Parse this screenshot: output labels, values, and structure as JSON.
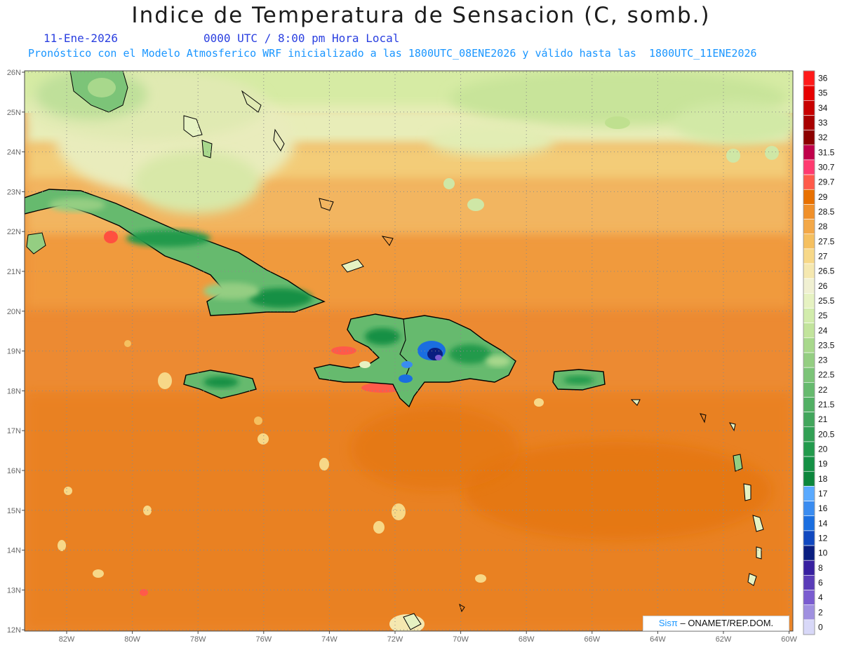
{
  "header": {
    "title": "Indice de Temperatura de Sensacion (C, somb.)",
    "date": "11-Ene-2026",
    "time": "0000 UTC / 8:00 pm Hora Local",
    "forecast_note": "Pronóstico con el Modelo Atmosferico WRF inicializado a las 1800UTC_08ENE2026 y válido hasta las  1800UTC_11ENE2026"
  },
  "credit": {
    "brand": "Sisπ",
    "text": " – ONAMET/REP.DOM."
  },
  "axes": {
    "lon_labels": [
      "82W",
      "80W",
      "78W",
      "76W",
      "74W",
      "72W",
      "70W",
      "68W",
      "66W",
      "64W",
      "62W",
      "60W"
    ],
    "lat_labels": [
      "26N",
      "25N",
      "24N",
      "23N",
      "22N",
      "21N",
      "20N",
      "19N",
      "18N",
      "17N",
      "16N",
      "15N",
      "14N",
      "13N",
      "12N"
    ]
  },
  "colorbar": {
    "labels": [
      "36",
      "35",
      "34",
      "33",
      "32",
      "31.5",
      "30.7",
      "29.7",
      "29",
      "28.5",
      "28",
      "27.5",
      "27",
      "26.5",
      "26",
      "25.5",
      "25",
      "24",
      "23.5",
      "23",
      "22.5",
      "22",
      "21.5",
      "21",
      "20.5",
      "20",
      "19",
      "18",
      "17",
      "16",
      "14",
      "12",
      "10",
      "8",
      "6",
      "4",
      "2",
      "0"
    ],
    "colors": [
      "#ff1a1a",
      "#e60000",
      "#c80000",
      "#a80000",
      "#8c0000",
      "#c0004a",
      "#ff3a70",
      "#ff5a4a",
      "#e87000",
      "#f0902a",
      "#f3a848",
      "#f5c060",
      "#f7d888",
      "#f5e8b0",
      "#f0f0d2",
      "#e6f2c2",
      "#d2ecac",
      "#c2e49c",
      "#a8d88c",
      "#94ce82",
      "#7cc478",
      "#66ba6e",
      "#52b064",
      "#42a65c",
      "#32a054",
      "#229a4c",
      "#149044",
      "#0c863c",
      "#5aaaff",
      "#3a8cf0",
      "#1a6ee0",
      "#1048c0",
      "#0a1e80",
      "#3820a0",
      "#5a3cb8",
      "#7a5cd0",
      "#a090e0",
      "#d8d8f8"
    ]
  },
  "legend_colors": {
    "ocean_warm": "#ec8a32",
    "ocean_light": "#f3a850",
    "coastline": "#000000",
    "land_green": "#4fae62"
  }
}
